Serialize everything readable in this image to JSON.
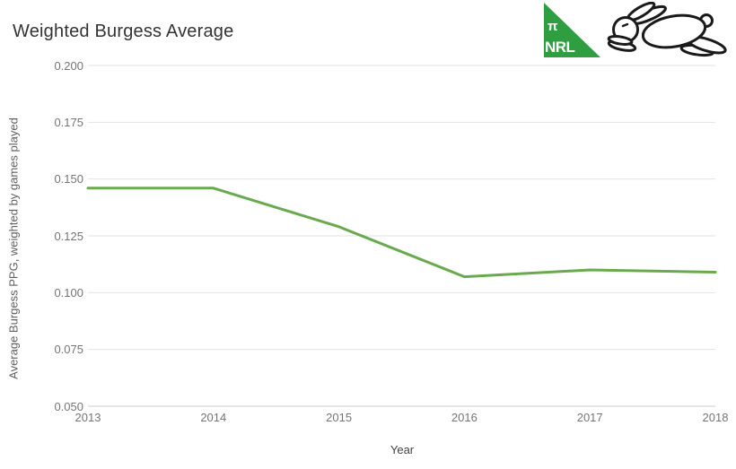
{
  "header": {
    "title": "Weighted Burgess Average"
  },
  "logos": {
    "pi_nrl": {
      "pi": "π",
      "nrl": "NRL",
      "green": "#2f9e41"
    },
    "rabbit_icon": "rabbitohs-rabbit-icon"
  },
  "chart_data": {
    "type": "line",
    "title": "Weighted Burgess Average",
    "xlabel": "Year",
    "ylabel": "Average Burgess PPG, weighted by games played",
    "categories": [
      "2013",
      "2014",
      "2015",
      "2016",
      "2017",
      "2018"
    ],
    "series": [
      {
        "name": "Weighted Burgess Average",
        "color": "#6aaa4e",
        "values": [
          0.146,
          0.146,
          0.129,
          0.107,
          0.11,
          0.109
        ]
      }
    ],
    "ylim": [
      0.05,
      0.2
    ],
    "y_ticks": [
      {
        "value": 0.2,
        "label": "0.200"
      },
      {
        "value": 0.175,
        "label": "0.175"
      },
      {
        "value": 0.15,
        "label": "0.150"
      },
      {
        "value": 0.125,
        "label": "0.125"
      },
      {
        "value": 0.1,
        "label": "0.100"
      },
      {
        "value": 0.075,
        "label": "0.075"
      },
      {
        "value": 0.05,
        "label": "0.050"
      }
    ],
    "grid": true,
    "legend_position": "none",
    "colors": {
      "gridline": "#e2e2e2",
      "baseline": "#cccccc",
      "tick_text": "#757575"
    }
  }
}
